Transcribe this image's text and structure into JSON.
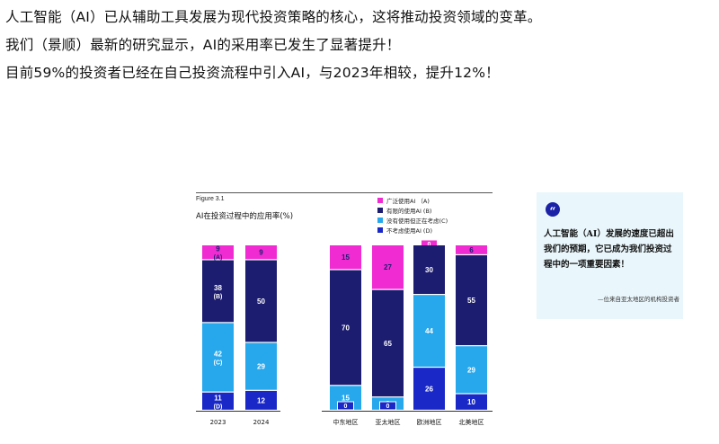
{
  "intro": {
    "line1": "人工智能（AI）已从辅助工具发展为现代投资策略的核心，这将推动投资领域的变革。",
    "line2": "我们（景顺）最新的研究显示，AI的采用率已发生了显著提升！",
    "line3": "目前59%的投资者已经在自己投资流程中引入AI，与2023年相较，提升12%！"
  },
  "figure": {
    "label": "Figure 3.1"
  },
  "colors": {
    "widely": "#f02bd2",
    "limited": "#1c1c70",
    "considering": "#27a8ec",
    "not": "#1a28c8"
  },
  "chart_data": {
    "type": "bar",
    "stacked": true,
    "title": "AI在投资过程中的应用率(%)",
    "categories": [
      "2023",
      "2024",
      "中东地区",
      "亚太地区",
      "欧洲地区",
      "北美地区"
    ],
    "series": [
      {
        "name": "广泛使用AI （A)",
        "key": "widely",
        "values": [
          9,
          9,
          15,
          27,
          0,
          6
        ],
        "tags": [
          "(A)",
          "",
          "",
          "",
          "",
          ""
        ]
      },
      {
        "name": "有限的使用AI (B)",
        "key": "limited",
        "values": [
          38,
          50,
          70,
          65,
          30,
          55
        ],
        "tags": [
          "(B)",
          "",
          "",
          "",
          "",
          ""
        ]
      },
      {
        "name": "没有使用但正在考虑(C)",
        "key": "considering",
        "values": [
          42,
          29,
          15,
          8,
          44,
          29
        ],
        "tags": [
          "(C)",
          "",
          "",
          "",
          "",
          ""
        ]
      },
      {
        "name": "不考虑使用AI (D)",
        "key": "not",
        "values": [
          11,
          12,
          0,
          0,
          26,
          10
        ],
        "tags": [
          "(D)",
          "",
          "",
          "",
          "",
          ""
        ]
      }
    ],
    "ylim": [
      0,
      100
    ],
    "grid": false,
    "legend": "top-right"
  },
  "quote": {
    "icon": "quote-icon",
    "mark": "“",
    "text": "人工智能（AI）发展的速度已超出我们的预期，它已成为我们投资过程中的一项重要因素！",
    "source": "—位来自亚太地区的机构投资者"
  }
}
